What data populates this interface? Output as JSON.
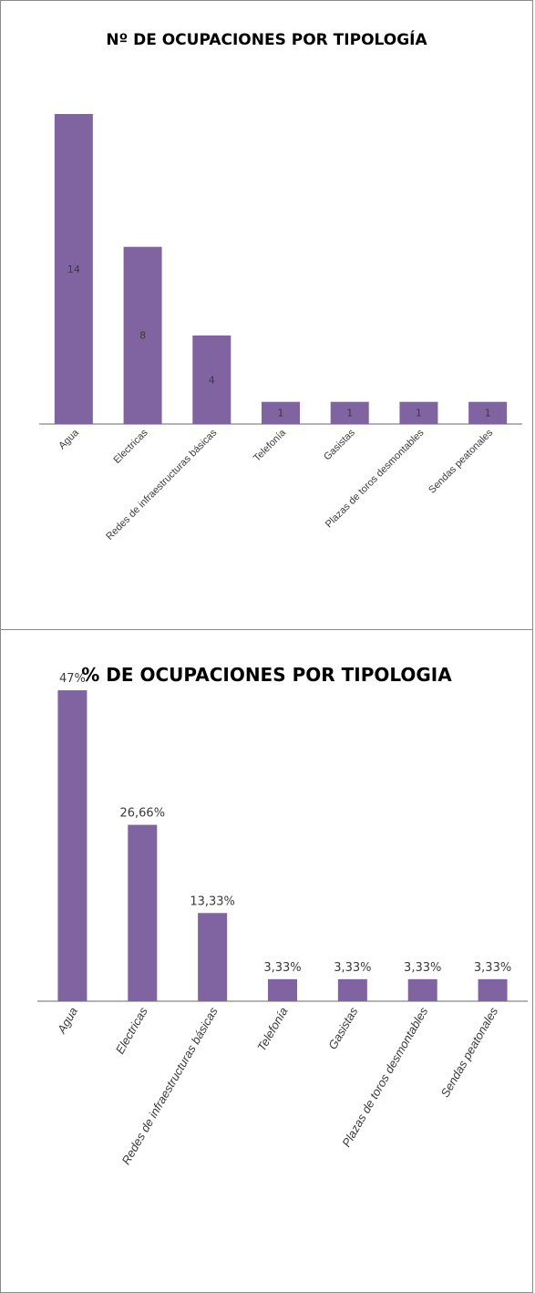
{
  "colors": {
    "bar": "#8064a2",
    "axis": "#9a9a9a",
    "text": "#3a3a3a"
  },
  "chart_data": [
    {
      "type": "bar",
      "title": "Nº DE OCUPACIONES POR TIPOLOGÍA",
      "xlabel": "",
      "ylabel": "",
      "categories": [
        "Agua",
        "Electricas",
        "Redes de infraestructuras básicas",
        "Telefonía",
        "Gasistas",
        "Plazas de toros desmontables",
        "Sendas peatonales"
      ],
      "values": [
        14,
        8,
        4,
        1,
        1,
        1,
        1
      ],
      "data_labels": [
        "14",
        "8",
        "4",
        "1",
        "1",
        "1",
        "1"
      ],
      "data_label_position": "center",
      "ylim": [
        0,
        14
      ],
      "grid": false,
      "legend": "none"
    },
    {
      "type": "bar",
      "title": "% DE OCUPACIONES POR TIPOLOGIA",
      "xlabel": "",
      "ylabel": "",
      "categories": [
        "Agua",
        "Electricas",
        "Redes de infraestructuras básicas",
        "Telefonía",
        "Gasistas",
        "Plazas de toros desmontables",
        "Sendas peatonales"
      ],
      "values": [
        47,
        26.66,
        13.33,
        3.33,
        3.33,
        3.33,
        3.33
      ],
      "data_labels": [
        "47%",
        "26,66%",
        "13,33%",
        "3,33%",
        "3,33%",
        "3,33%",
        "3,33%"
      ],
      "data_label_position": "outside-end",
      "ylim": [
        0,
        47
      ],
      "grid": false,
      "legend": "none"
    }
  ]
}
